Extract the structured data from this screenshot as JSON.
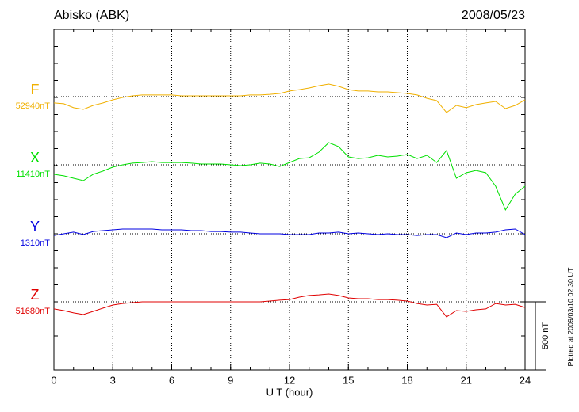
{
  "chart_data": {
    "type": "line",
    "title": "Abisko (ABK)",
    "date": "2008/05/23",
    "plotted": "Plotted at 2009/03/10 02:30 UT",
    "x_label": "U T (hour)",
    "xlim": [
      0,
      24
    ],
    "xticks": [
      0,
      3,
      6,
      9,
      12,
      15,
      18,
      21,
      24
    ],
    "scale": {
      "value": 500,
      "label": "500 nT"
    },
    "grid": true,
    "x": [
      0,
      0.5,
      1,
      1.5,
      2,
      2.5,
      3,
      3.5,
      4,
      4.5,
      5,
      5.5,
      6,
      6.5,
      7,
      7.5,
      8,
      8.5,
      9,
      9.5,
      10,
      10.5,
      11,
      11.5,
      12,
      12.5,
      13,
      13.5,
      14,
      14.5,
      15,
      15.5,
      16,
      16.5,
      17,
      17.5,
      18,
      18.5,
      19,
      19.5,
      20,
      20.5,
      21,
      21.5,
      22,
      22.5,
      23,
      23.5,
      24
    ],
    "series": [
      {
        "name": "F",
        "color": "#f0b000",
        "baseline": {
          "value": 52940,
          "label": "52940nT"
        },
        "values": [
          52894,
          52888,
          52859,
          52847,
          52876,
          52894,
          52917,
          52934,
          52946,
          52952,
          52952,
          52952,
          52952,
          52946,
          52946,
          52946,
          52946,
          52946,
          52946,
          52946,
          52952,
          52952,
          52957,
          52963,
          52981,
          52992,
          53004,
          53021,
          53033,
          53016,
          52992,
          52981,
          52981,
          52975,
          52975,
          52969,
          52963,
          52952,
          52928,
          52911,
          52824,
          52876,
          52859,
          52882,
          52894,
          52905,
          52853,
          52876,
          52917
        ]
      },
      {
        "name": "X",
        "color": "#00e000",
        "baseline": {
          "value": 11410,
          "label": "11410nT"
        },
        "values": [
          11340,
          11329,
          11311,
          11294,
          11340,
          11364,
          11393,
          11410,
          11422,
          11427,
          11433,
          11427,
          11427,
          11427,
          11422,
          11416,
          11416,
          11416,
          11410,
          11404,
          11410,
          11422,
          11416,
          11398,
          11427,
          11456,
          11462,
          11503,
          11573,
          11544,
          11468,
          11456,
          11462,
          11480,
          11468,
          11474,
          11486,
          11456,
          11480,
          11427,
          11515,
          11311,
          11352,
          11369,
          11352,
          11253,
          11079,
          11195,
          11253
        ]
      },
      {
        "name": "Y",
        "color": "#0000e0",
        "baseline": {
          "value": 1310,
          "label": "1310nT"
        },
        "values": [
          1298,
          1310,
          1322,
          1304,
          1327,
          1333,
          1339,
          1345,
          1345,
          1345,
          1345,
          1339,
          1339,
          1339,
          1333,
          1333,
          1327,
          1327,
          1322,
          1322,
          1316,
          1310,
          1310,
          1310,
          1304,
          1304,
          1304,
          1316,
          1316,
          1322,
          1310,
          1316,
          1310,
          1304,
          1310,
          1304,
          1304,
          1298,
          1304,
          1304,
          1281,
          1316,
          1304,
          1316,
          1316,
          1322,
          1339,
          1345,
          1304
        ]
      },
      {
        "name": "Z",
        "color": "#e00000",
        "baseline": {
          "value": 51680,
          "label": "51680nT"
        },
        "values": [
          51628,
          51616,
          51599,
          51587,
          51610,
          51634,
          51657,
          51668,
          51674,
          51680,
          51680,
          51680,
          51680,
          51680,
          51680,
          51680,
          51680,
          51680,
          51680,
          51680,
          51680,
          51680,
          51686,
          51692,
          51697,
          51715,
          51727,
          51732,
          51738,
          51727,
          51709,
          51703,
          51703,
          51697,
          51697,
          51692,
          51686,
          51668,
          51657,
          51662,
          51570,
          51616,
          51610,
          51622,
          51628,
          51668,
          51657,
          51662,
          51639
        ]
      }
    ]
  }
}
